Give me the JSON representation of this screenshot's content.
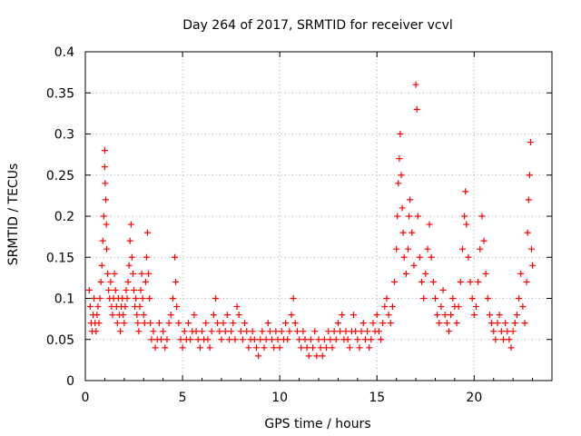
{
  "chart_data": {
    "type": "scatter",
    "title": "Day 264 of 2017, SRMTID for receiver vcvl",
    "xlabel": "GPS time / hours",
    "ylabel": "SRMTID / TECUs",
    "xlim": [
      0,
      24
    ],
    "ylim": [
      0,
      0.4
    ],
    "x_ticks": [
      0,
      5,
      10,
      15,
      20
    ],
    "x_tick_labels": [
      "0",
      "5",
      "10",
      "15",
      "20"
    ],
    "y_ticks": [
      0,
      0.05,
      0.1,
      0.15,
      0.2,
      0.25,
      0.3,
      0.35,
      0.4
    ],
    "y_tick_labels": [
      "0",
      "0.05",
      "0.1",
      "0.15",
      "0.2",
      "0.25",
      "0.3",
      "0.35",
      "0.4"
    ],
    "grid": true,
    "marker": "+",
    "series": [
      {
        "name": "SRMTID",
        "color": "#ff0000",
        "points": [
          [
            0.2,
            0.11
          ],
          [
            0.25,
            0.09
          ],
          [
            0.3,
            0.07
          ],
          [
            0.35,
            0.06
          ],
          [
            0.4,
            0.08
          ],
          [
            0.45,
            0.1
          ],
          [
            0.5,
            0.07
          ],
          [
            0.55,
            0.06
          ],
          [
            0.6,
            0.08
          ],
          [
            0.65,
            0.09
          ],
          [
            0.7,
            0.07
          ],
          [
            0.75,
            0.1
          ],
          [
            0.8,
            0.12
          ],
          [
            0.85,
            0.14
          ],
          [
            0.9,
            0.17
          ],
          [
            0.95,
            0.2
          ],
          [
            1.0,
            0.28
          ],
          [
            1.0,
            0.26
          ],
          [
            1.02,
            0.24
          ],
          [
            1.05,
            0.22
          ],
          [
            1.08,
            0.19
          ],
          [
            1.1,
            0.16
          ],
          [
            1.15,
            0.13
          ],
          [
            1.2,
            0.11
          ],
          [
            1.25,
            0.1
          ],
          [
            1.3,
            0.12
          ],
          [
            1.35,
            0.09
          ],
          [
            1.4,
            0.08
          ],
          [
            1.45,
            0.1
          ],
          [
            1.5,
            0.13
          ],
          [
            1.55,
            0.11
          ],
          [
            1.6,
            0.09
          ],
          [
            1.65,
            0.07
          ],
          [
            1.7,
            0.1
          ],
          [
            1.75,
            0.08
          ],
          [
            1.8,
            0.06
          ],
          [
            1.85,
            0.09
          ],
          [
            1.9,
            0.1
          ],
          [
            1.95,
            0.08
          ],
          [
            2.0,
            0.07
          ],
          [
            2.05,
            0.09
          ],
          [
            2.1,
            0.11
          ],
          [
            2.15,
            0.1
          ],
          [
            2.2,
            0.12
          ],
          [
            2.25,
            0.14
          ],
          [
            2.3,
            0.17
          ],
          [
            2.35,
            0.19
          ],
          [
            2.4,
            0.15
          ],
          [
            2.45,
            0.13
          ],
          [
            2.5,
            0.11
          ],
          [
            2.55,
            0.09
          ],
          [
            2.6,
            0.1
          ],
          [
            2.65,
            0.08
          ],
          [
            2.7,
            0.07
          ],
          [
            2.75,
            0.06
          ],
          [
            2.8,
            0.09
          ],
          [
            2.85,
            0.11
          ],
          [
            2.9,
            0.13
          ],
          [
            2.95,
            0.1
          ],
          [
            3.0,
            0.08
          ],
          [
            3.05,
            0.07
          ],
          [
            3.1,
            0.12
          ],
          [
            3.15,
            0.15
          ],
          [
            3.2,
            0.18
          ],
          [
            3.25,
            0.13
          ],
          [
            3.3,
            0.1
          ],
          [
            3.35,
            0.07
          ],
          [
            3.4,
            0.05
          ],
          [
            3.5,
            0.06
          ],
          [
            3.6,
            0.04
          ],
          [
            3.7,
            0.05
          ],
          [
            3.8,
            0.07
          ],
          [
            3.9,
            0.05
          ],
          [
            4.0,
            0.06
          ],
          [
            4.1,
            0.04
          ],
          [
            4.2,
            0.05
          ],
          [
            4.3,
            0.07
          ],
          [
            4.4,
            0.08
          ],
          [
            4.5,
            0.1
          ],
          [
            4.6,
            0.15
          ],
          [
            4.65,
            0.12
          ],
          [
            4.7,
            0.09
          ],
          [
            4.8,
            0.07
          ],
          [
            4.9,
            0.05
          ],
          [
            5.0,
            0.04
          ],
          [
            5.1,
            0.06
          ],
          [
            5.2,
            0.05
          ],
          [
            5.3,
            0.07
          ],
          [
            5.4,
            0.05
          ],
          [
            5.5,
            0.06
          ],
          [
            5.6,
            0.08
          ],
          [
            5.7,
            0.06
          ],
          [
            5.8,
            0.05
          ],
          [
            5.9,
            0.04
          ],
          [
            6.0,
            0.06
          ],
          [
            6.1,
            0.05
          ],
          [
            6.2,
            0.07
          ],
          [
            6.3,
            0.05
          ],
          [
            6.4,
            0.04
          ],
          [
            6.5,
            0.06
          ],
          [
            6.6,
            0.08
          ],
          [
            6.7,
            0.1
          ],
          [
            6.8,
            0.07
          ],
          [
            6.9,
            0.06
          ],
          [
            7.0,
            0.05
          ],
          [
            7.1,
            0.07
          ],
          [
            7.2,
            0.06
          ],
          [
            7.3,
            0.08
          ],
          [
            7.4,
            0.05
          ],
          [
            7.5,
            0.06
          ],
          [
            7.6,
            0.07
          ],
          [
            7.7,
            0.05
          ],
          [
            7.8,
            0.09
          ],
          [
            7.9,
            0.08
          ],
          [
            8.0,
            0.06
          ],
          [
            8.1,
            0.05
          ],
          [
            8.2,
            0.07
          ],
          [
            8.3,
            0.06
          ],
          [
            8.4,
            0.04
          ],
          [
            8.5,
            0.05
          ],
          [
            8.6,
            0.06
          ],
          [
            8.7,
            0.05
          ],
          [
            8.8,
            0.04
          ],
          [
            8.9,
            0.03
          ],
          [
            9.0,
            0.05
          ],
          [
            9.1,
            0.06
          ],
          [
            9.2,
            0.04
          ],
          [
            9.3,
            0.05
          ],
          [
            9.4,
            0.07
          ],
          [
            9.5,
            0.06
          ],
          [
            9.6,
            0.05
          ],
          [
            9.7,
            0.04
          ],
          [
            9.8,
            0.06
          ],
          [
            9.9,
            0.05
          ],
          [
            10.0,
            0.04
          ],
          [
            10.1,
            0.06
          ],
          [
            10.2,
            0.05
          ],
          [
            10.3,
            0.07
          ],
          [
            10.4,
            0.05
          ],
          [
            10.5,
            0.06
          ],
          [
            10.6,
            0.08
          ],
          [
            10.7,
            0.1
          ],
          [
            10.8,
            0.07
          ],
          [
            10.9,
            0.06
          ],
          [
            11.0,
            0.05
          ],
          [
            11.1,
            0.04
          ],
          [
            11.2,
            0.06
          ],
          [
            11.3,
            0.05
          ],
          [
            11.4,
            0.04
          ],
          [
            11.5,
            0.03
          ],
          [
            11.6,
            0.05
          ],
          [
            11.7,
            0.04
          ],
          [
            11.8,
            0.06
          ],
          [
            11.9,
            0.03
          ],
          [
            12.0,
            0.05
          ],
          [
            12.1,
            0.04
          ],
          [
            12.2,
            0.03
          ],
          [
            12.3,
            0.05
          ],
          [
            12.4,
            0.04
          ],
          [
            12.5,
            0.06
          ],
          [
            12.6,
            0.05
          ],
          [
            12.7,
            0.04
          ],
          [
            12.8,
            0.06
          ],
          [
            12.9,
            0.05
          ],
          [
            13.0,
            0.07
          ],
          [
            13.1,
            0.06
          ],
          [
            13.2,
            0.08
          ],
          [
            13.3,
            0.05
          ],
          [
            13.4,
            0.06
          ],
          [
            13.5,
            0.05
          ],
          [
            13.6,
            0.04
          ],
          [
            13.7,
            0.06
          ],
          [
            13.8,
            0.08
          ],
          [
            13.9,
            0.06
          ],
          [
            14.0,
            0.05
          ],
          [
            14.1,
            0.04
          ],
          [
            14.2,
            0.06
          ],
          [
            14.3,
            0.07
          ],
          [
            14.4,
            0.05
          ],
          [
            14.5,
            0.06
          ],
          [
            14.6,
            0.04
          ],
          [
            14.7,
            0.05
          ],
          [
            14.8,
            0.07
          ],
          [
            14.9,
            0.06
          ],
          [
            15.0,
            0.08
          ],
          [
            15.1,
            0.06
          ],
          [
            15.2,
            0.05
          ],
          [
            15.3,
            0.07
          ],
          [
            15.4,
            0.09
          ],
          [
            15.5,
            0.1
          ],
          [
            15.6,
            0.08
          ],
          [
            15.7,
            0.07
          ],
          [
            15.8,
            0.09
          ],
          [
            15.9,
            0.12
          ],
          [
            16.0,
            0.16
          ],
          [
            16.05,
            0.2
          ],
          [
            16.1,
            0.24
          ],
          [
            16.15,
            0.27
          ],
          [
            16.2,
            0.3
          ],
          [
            16.25,
            0.25
          ],
          [
            16.3,
            0.21
          ],
          [
            16.35,
            0.18
          ],
          [
            16.4,
            0.15
          ],
          [
            16.5,
            0.13
          ],
          [
            16.6,
            0.16
          ],
          [
            16.65,
            0.2
          ],
          [
            16.7,
            0.22
          ],
          [
            16.8,
            0.18
          ],
          [
            16.9,
            0.14
          ],
          [
            17.0,
            0.36
          ],
          [
            17.05,
            0.33
          ],
          [
            17.1,
            0.2
          ],
          [
            17.2,
            0.15
          ],
          [
            17.3,
            0.12
          ],
          [
            17.4,
            0.1
          ],
          [
            17.5,
            0.13
          ],
          [
            17.6,
            0.16
          ],
          [
            17.7,
            0.19
          ],
          [
            17.8,
            0.15
          ],
          [
            17.9,
            0.12
          ],
          [
            18.0,
            0.1
          ],
          [
            18.1,
            0.08
          ],
          [
            18.2,
            0.07
          ],
          [
            18.3,
            0.09
          ],
          [
            18.4,
            0.11
          ],
          [
            18.5,
            0.08
          ],
          [
            18.6,
            0.07
          ],
          [
            18.7,
            0.06
          ],
          [
            18.8,
            0.08
          ],
          [
            18.9,
            0.1
          ],
          [
            19.0,
            0.09
          ],
          [
            19.1,
            0.07
          ],
          [
            19.2,
            0.09
          ],
          [
            19.3,
            0.12
          ],
          [
            19.4,
            0.16
          ],
          [
            19.5,
            0.2
          ],
          [
            19.55,
            0.23
          ],
          [
            19.6,
            0.19
          ],
          [
            19.7,
            0.15
          ],
          [
            19.8,
            0.12
          ],
          [
            19.9,
            0.1
          ],
          [
            20.0,
            0.08
          ],
          [
            20.1,
            0.09
          ],
          [
            20.2,
            0.12
          ],
          [
            20.3,
            0.16
          ],
          [
            20.4,
            0.2
          ],
          [
            20.5,
            0.17
          ],
          [
            20.6,
            0.13
          ],
          [
            20.7,
            0.1
          ],
          [
            20.8,
            0.08
          ],
          [
            20.9,
            0.07
          ],
          [
            21.0,
            0.06
          ],
          [
            21.1,
            0.05
          ],
          [
            21.2,
            0.07
          ],
          [
            21.3,
            0.08
          ],
          [
            21.4,
            0.06
          ],
          [
            21.5,
            0.05
          ],
          [
            21.6,
            0.07
          ],
          [
            21.7,
            0.06
          ],
          [
            21.8,
            0.05
          ],
          [
            21.9,
            0.04
          ],
          [
            22.0,
            0.06
          ],
          [
            22.1,
            0.07
          ],
          [
            22.2,
            0.08
          ],
          [
            22.3,
            0.1
          ],
          [
            22.4,
            0.13
          ],
          [
            22.5,
            0.09
          ],
          [
            22.6,
            0.07
          ],
          [
            22.7,
            0.12
          ],
          [
            22.75,
            0.18
          ],
          [
            22.8,
            0.22
          ],
          [
            22.85,
            0.25
          ],
          [
            22.9,
            0.29
          ],
          [
            22.95,
            0.16
          ],
          [
            23.0,
            0.14
          ]
        ]
      }
    ]
  }
}
